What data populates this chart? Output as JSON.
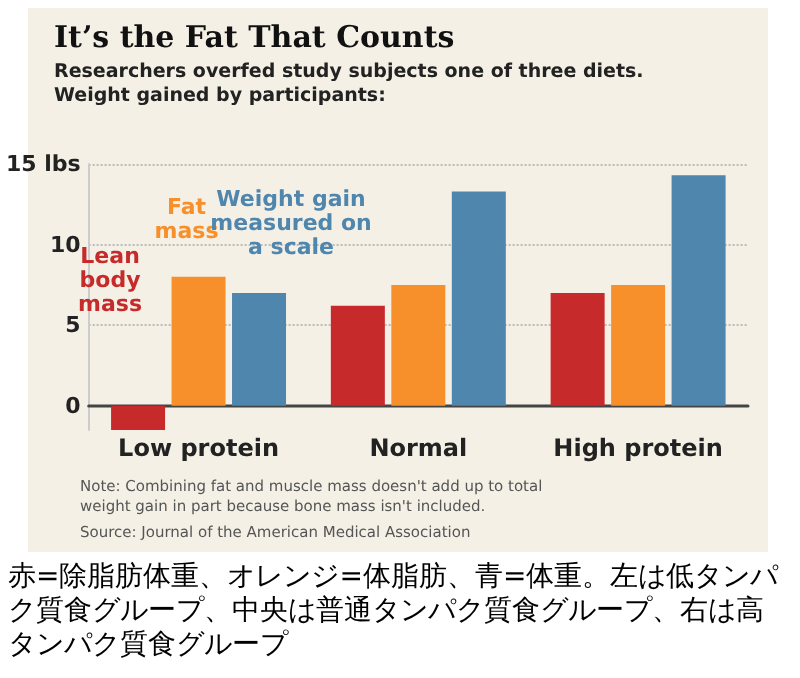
{
  "chart_data": {
    "type": "bar",
    "title": "It’s the Fat That Counts",
    "subtitle": "Researchers overfed study subjects one of three diets.\nWeight gained by participants:",
    "categories": [
      "Low protein",
      "Normal",
      "High protein"
    ],
    "series": [
      {
        "name": "Lean body mass",
        "color": "#c62a2a",
        "values": [
          -1.5,
          6.2,
          7.0
        ]
      },
      {
        "name": "Fat mass",
        "color": "#f7902a",
        "values": [
          8.0,
          7.5,
          7.5
        ]
      },
      {
        "name": "Weight gain measured on a scale",
        "color": "#4f86ad",
        "values": [
          7.0,
          13.3,
          14.3
        ]
      }
    ],
    "ylim": [
      -1.5,
      15
    ],
    "yticks": [
      0,
      5,
      10,
      {
        "value": 15,
        "label": "15 lbs"
      }
    ],
    "grid": "y",
    "legend": false,
    "annotations": [
      "Note: Combining fat and muscle mass doesn't add up to total weight gain in part because bone mass isn't included.",
      "Source: Journal of the American Medical Association",
      "赤=除脂肪体重、オレンジ=体脂肪、青=体重。左は低タンパク質食グループ、中央は普通タンパク質食グループ、右は高タンパク質食グループ"
    ]
  }
}
